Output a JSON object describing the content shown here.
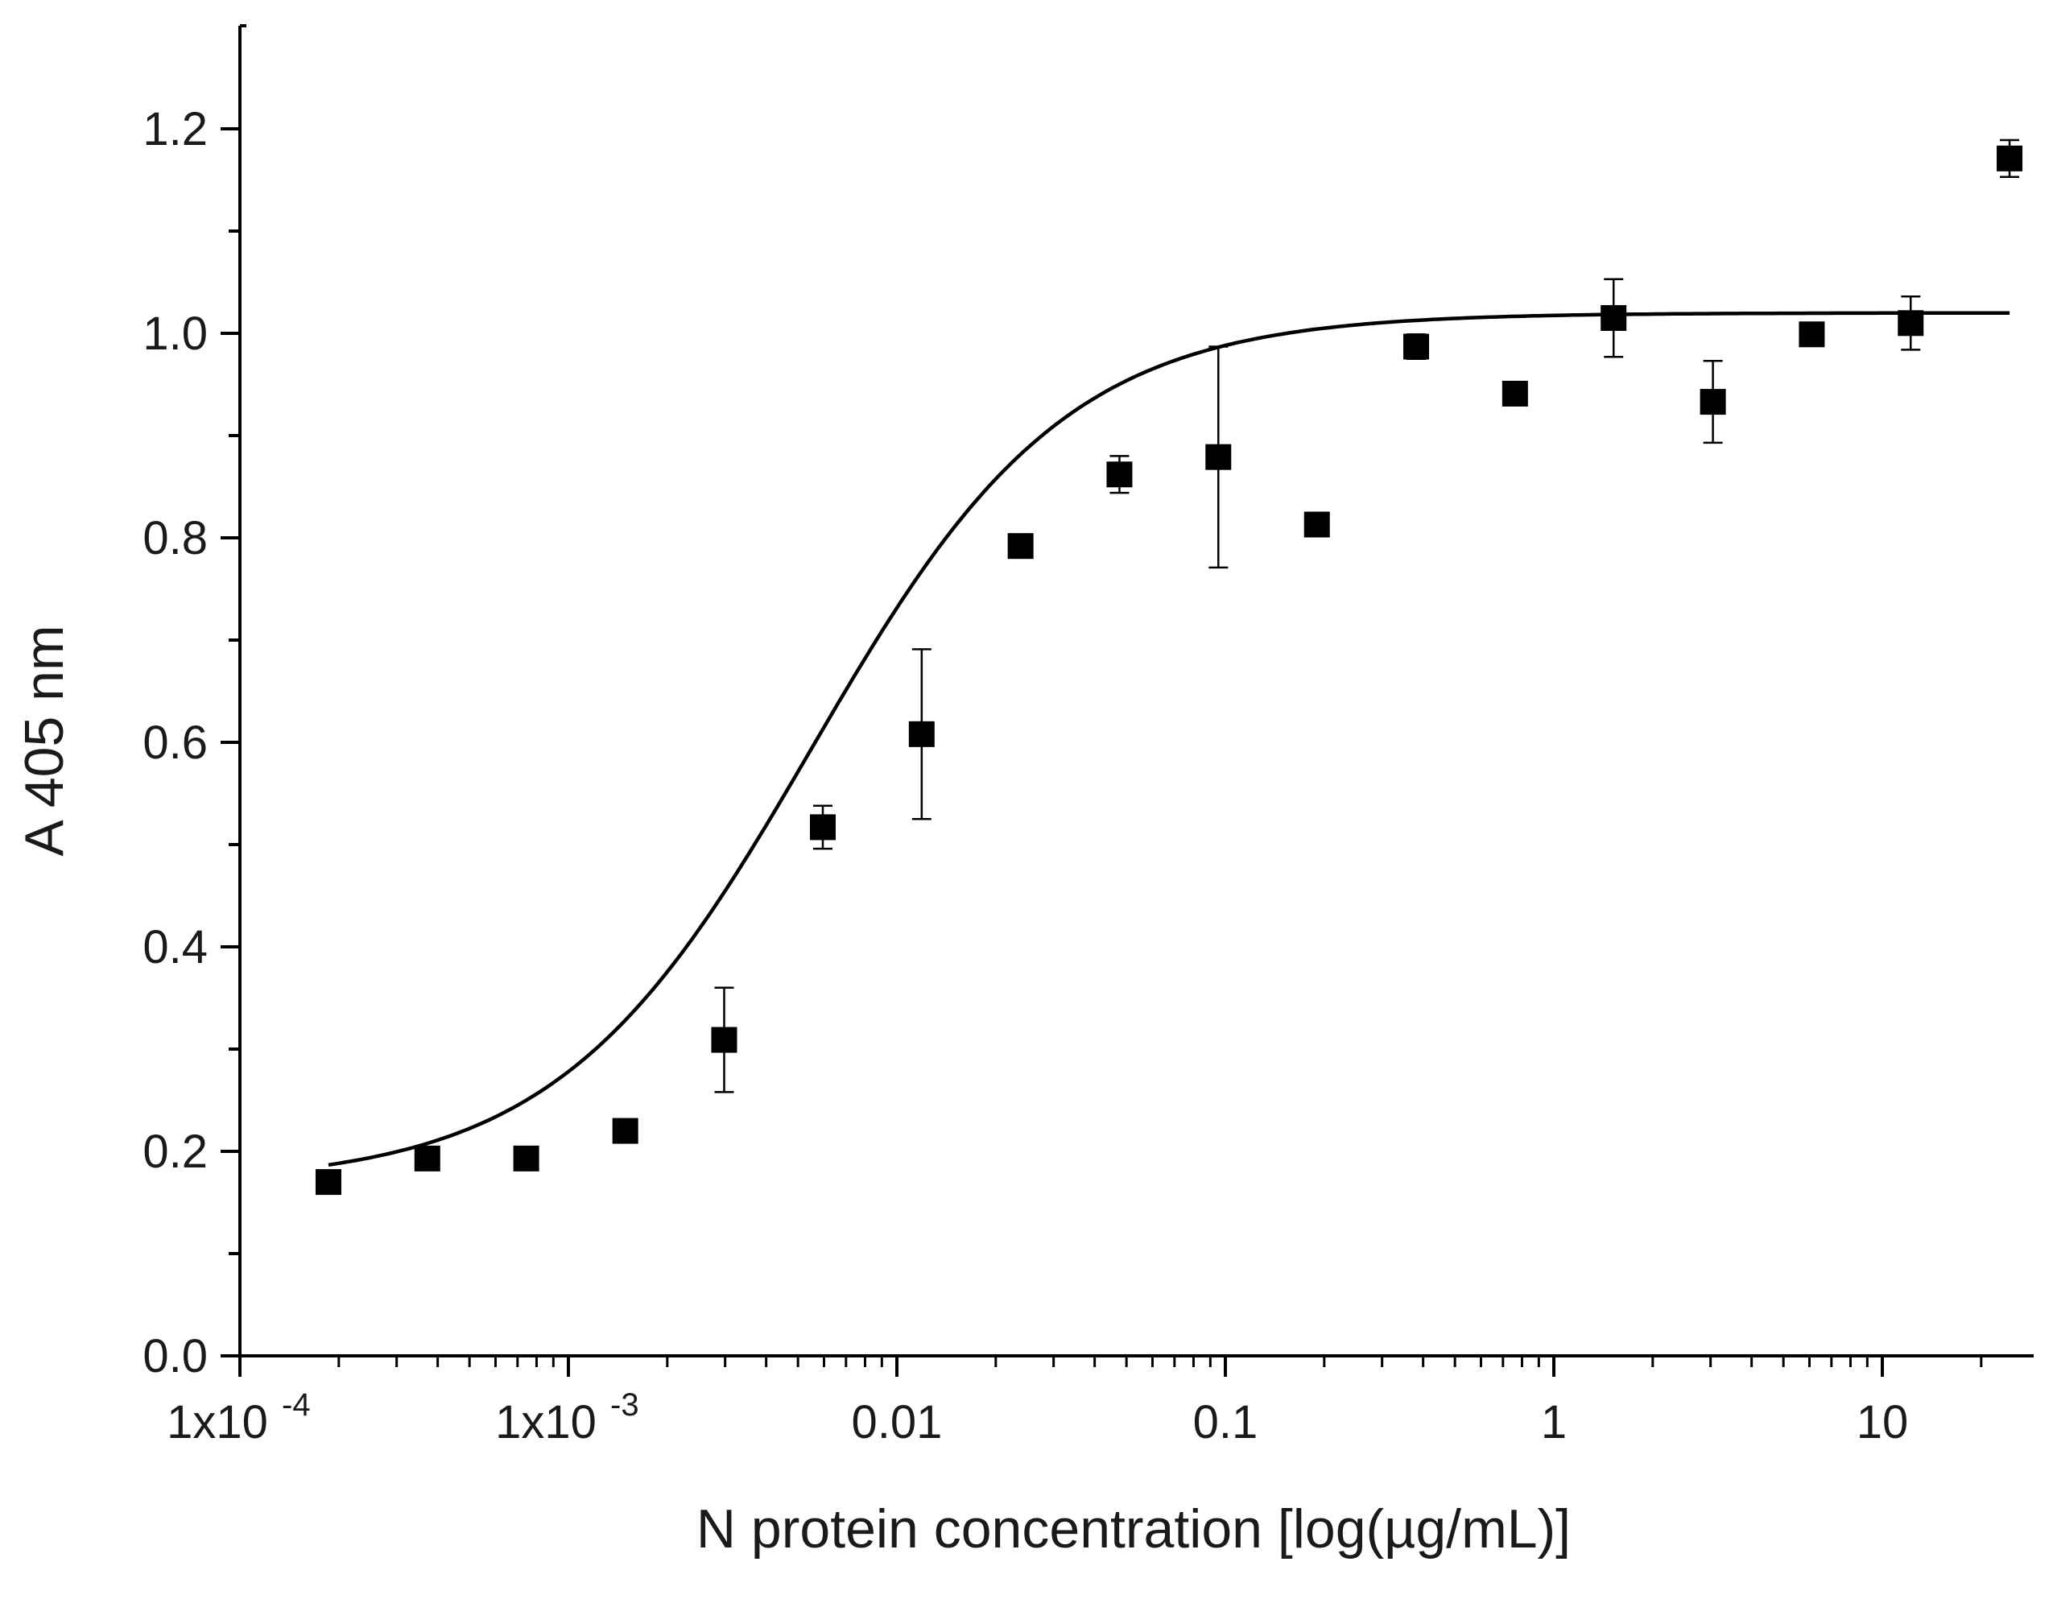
{
  "chart_data": {
    "type": "scatter",
    "title": "",
    "xlabel": "N protein concentration [log(µg/mL)]",
    "ylabel": "A 405 nm",
    "xscale": "log",
    "xlim": [
      0.0001,
      28
    ],
    "ylim": [
      0.0,
      1.28
    ],
    "grid": false,
    "legend": "none",
    "marker": "square",
    "color": "#000000",
    "x_ticks": [
      {
        "value": 0.0001,
        "mantissa": "1x10",
        "exponent": "-4"
      },
      {
        "value": 0.001,
        "mantissa": "1x10",
        "exponent": "-3"
      },
      {
        "value": 0.01,
        "mantissa": "0.01",
        "exponent": ""
      },
      {
        "value": 0.1,
        "mantissa": "0.1",
        "exponent": ""
      },
      {
        "value": 1,
        "mantissa": "1",
        "exponent": ""
      },
      {
        "value": 10,
        "mantissa": "10",
        "exponent": ""
      }
    ],
    "y_ticks": [
      {
        "value": 0.0,
        "label": "0.0"
      },
      {
        "value": 0.2,
        "label": "0.2"
      },
      {
        "value": 0.4,
        "label": "0.4"
      },
      {
        "value": 0.6,
        "label": "0.6"
      },
      {
        "value": 0.8,
        "label": "0.8"
      },
      {
        "value": 1.0,
        "label": "1.0"
      },
      {
        "value": 1.2,
        "label": "1.2"
      }
    ],
    "y_minor_step": 0.1,
    "points": [
      {
        "x": 0.000186,
        "y": 0.17,
        "err": 0
      },
      {
        "x": 0.000372,
        "y": 0.193,
        "err": 0
      },
      {
        "x": 0.000744,
        "y": 0.193,
        "err": 0
      },
      {
        "x": 0.00149,
        "y": 0.22,
        "err": 0
      },
      {
        "x": 0.00298,
        "y": 0.309,
        "err": 0.051
      },
      {
        "x": 0.00595,
        "y": 0.517,
        "err": 0.021
      },
      {
        "x": 0.0119,
        "y": 0.608,
        "err": 0.083
      },
      {
        "x": 0.0238,
        "y": 0.792,
        "err": 0
      },
      {
        "x": 0.0476,
        "y": 0.862,
        "err": 0.018
      },
      {
        "x": 0.0952,
        "y": 0.879,
        "err": 0.108
      },
      {
        "x": 0.19,
        "y": 0.813,
        "err": 0
      },
      {
        "x": 0.381,
        "y": 0.987,
        "err": 0.012
      },
      {
        "x": 0.762,
        "y": 0.941,
        "err": 0
      },
      {
        "x": 1.52,
        "y": 1.015,
        "err": 0.038
      },
      {
        "x": 3.05,
        "y": 0.933,
        "err": 0.04
      },
      {
        "x": 6.1,
        "y": 0.999,
        "err": 0
      },
      {
        "x": 12.2,
        "y": 1.01,
        "err": 0.026
      },
      {
        "x": 24.4,
        "y": 1.171,
        "err": 0.018
      }
    ],
    "fit": {
      "model": "4-parameter logistic",
      "bottom": 0.168,
      "top": 1.02,
      "ec50": 0.0055,
      "hill": 1.12
    }
  }
}
